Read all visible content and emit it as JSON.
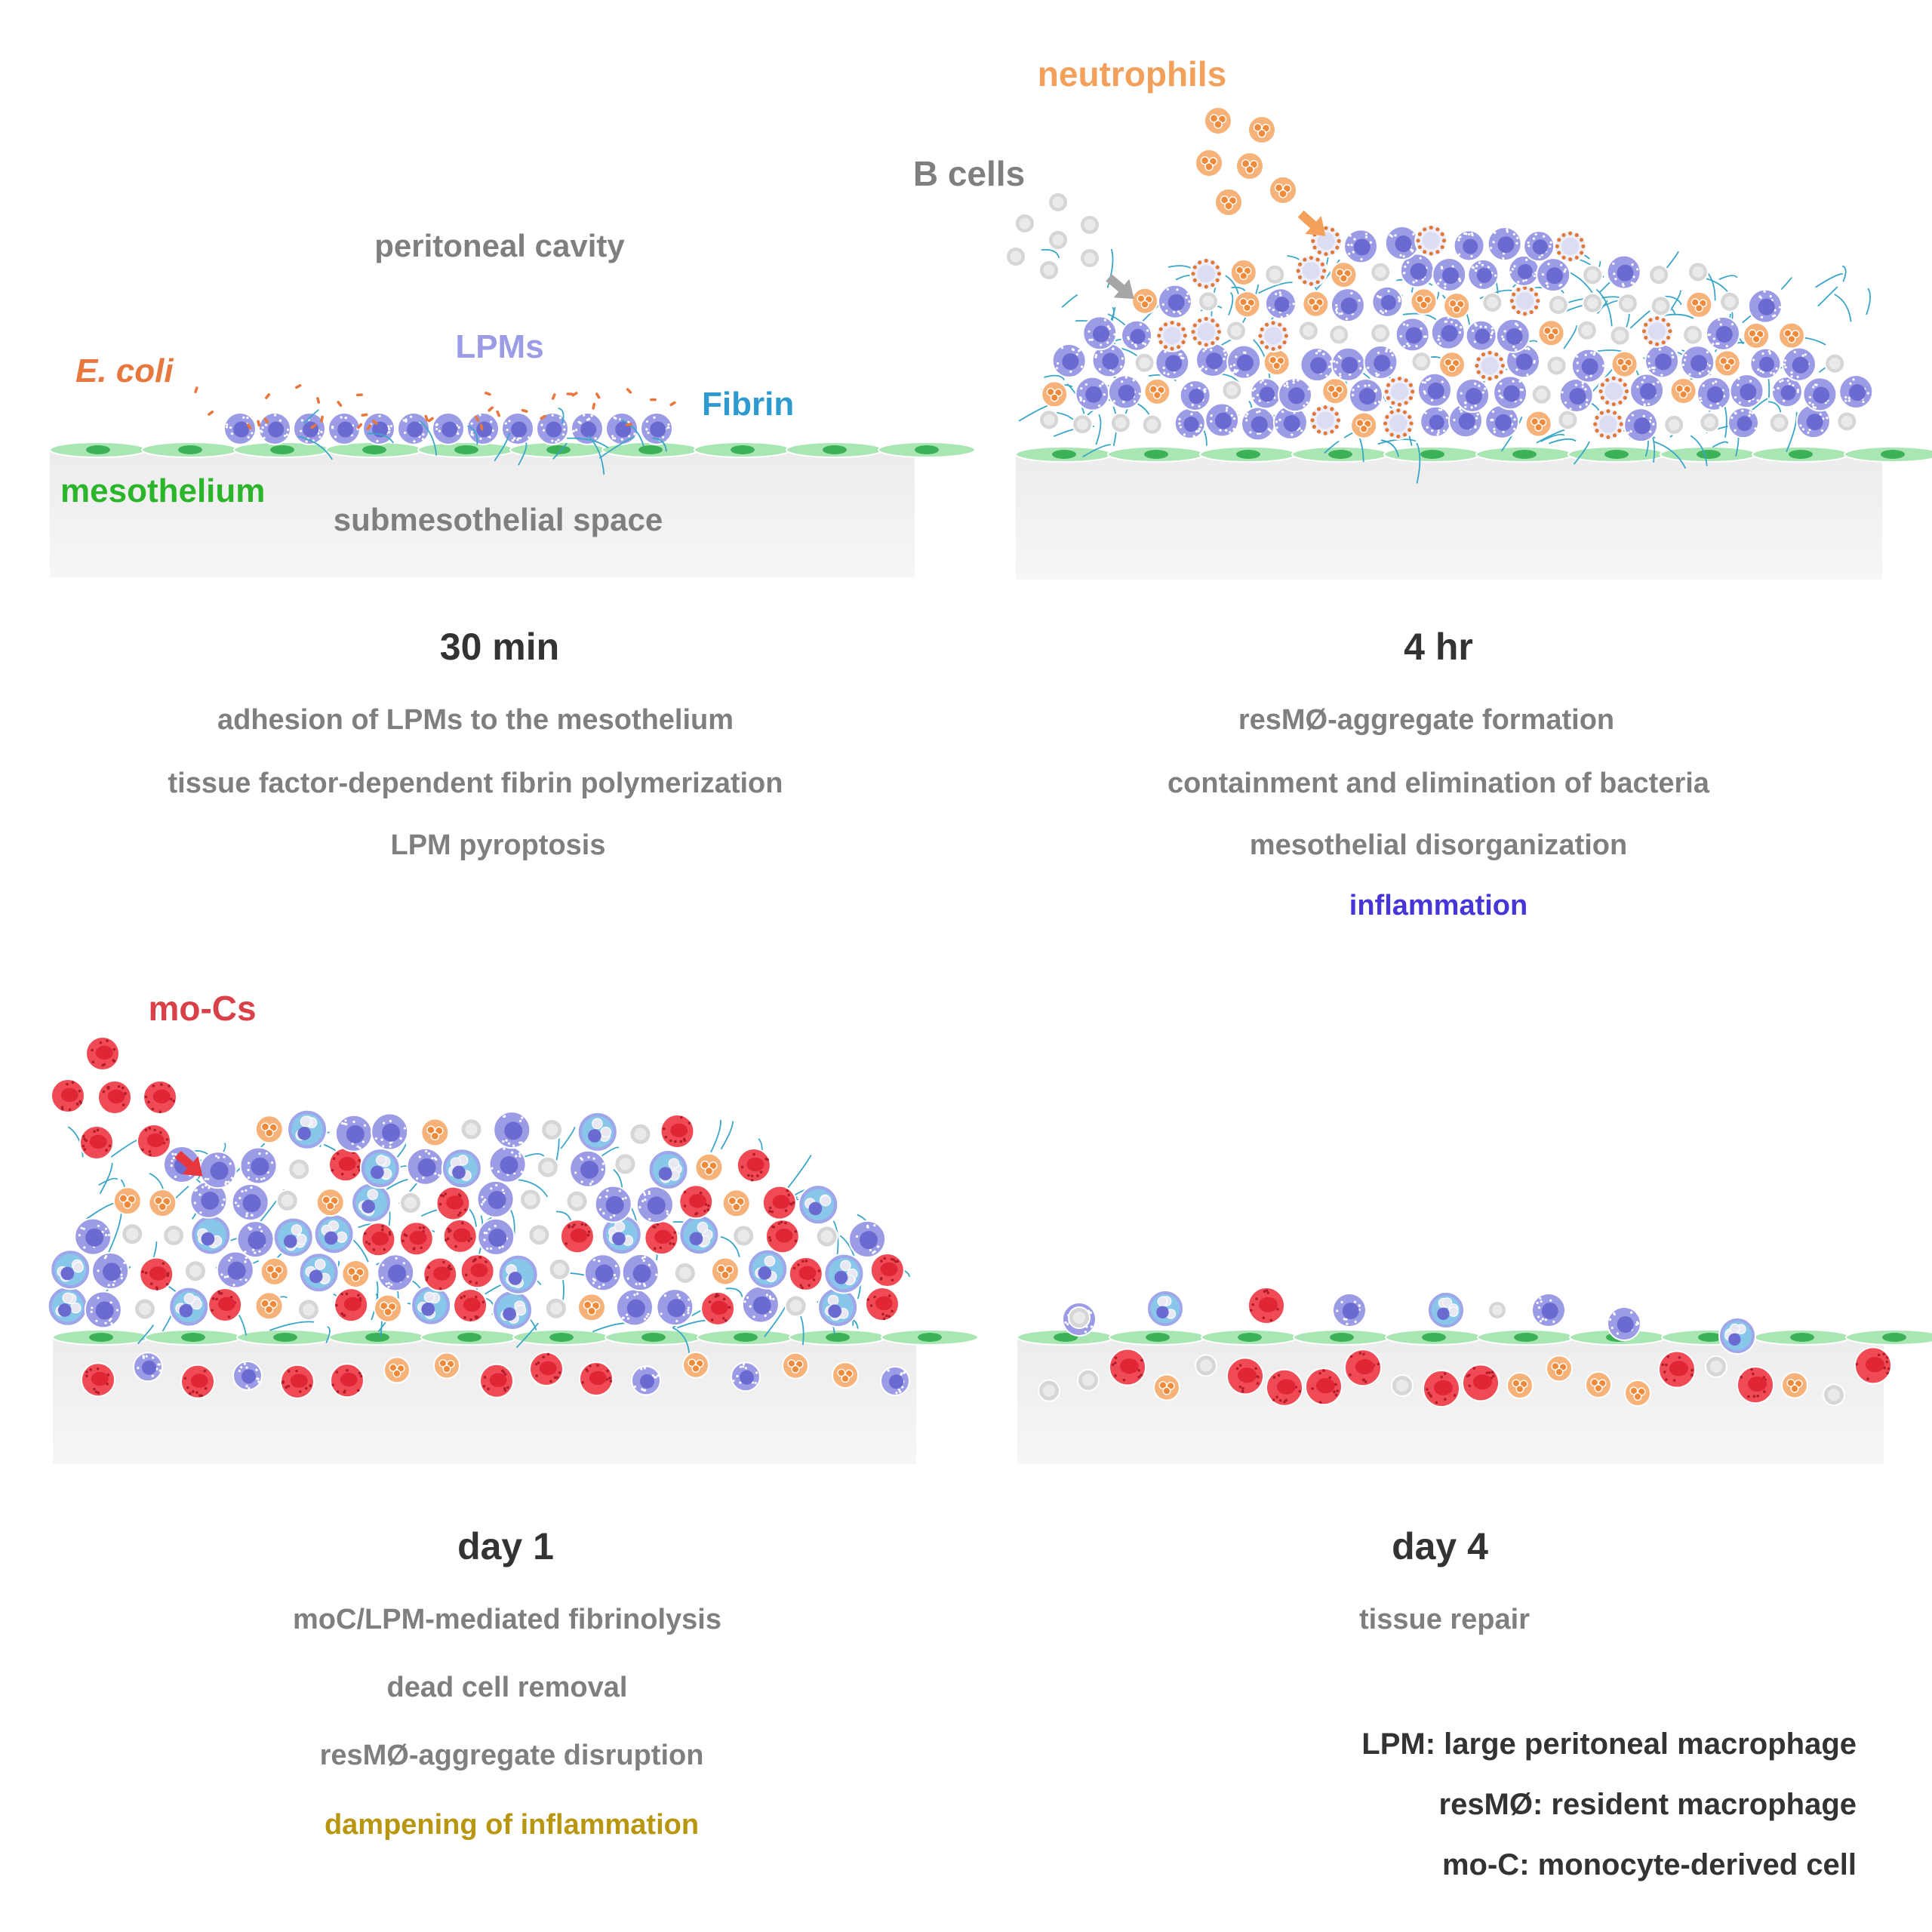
{
  "panels": [
    {
      "time": "30 min",
      "labels": {
        "cavity": "peritoneal cavity",
        "bacteria": "E. coli",
        "macrophages": "LPMs",
        "fibrin": "Fibrin",
        "mesothelium": "mesothelium",
        "submesothelial": "submesothelial space"
      },
      "events": [
        {
          "text": "adhesion of LPMs to the mesothelium",
          "color": "#7f7f7f"
        },
        {
          "text": "tissue factor-dependent fibrin polymerization",
          "color": "#7f7f7f"
        },
        {
          "text": "LPM pyroptosis",
          "color": "#7f7f7f"
        }
      ]
    },
    {
      "time": "4 hr",
      "labels": {
        "neutrophils": "neutrophils",
        "bcells": "B cells"
      },
      "events": [
        {
          "text": "resMØ-aggregate formation",
          "color": "#7f7f7f"
        },
        {
          "text": "containment and elimination of bacteria",
          "color": "#7f7f7f"
        },
        {
          "text": "mesothelial disorganization",
          "color": "#7f7f7f"
        },
        {
          "text": "inflammation",
          "color": "#4636d8"
        }
      ]
    },
    {
      "time": "day 1",
      "labels": {
        "mocs": "mo-Cs"
      },
      "events": [
        {
          "text": "moC/LPM-mediated fibrinolysis",
          "color": "#7f7f7f"
        },
        {
          "text": "dead cell removal",
          "color": "#7f7f7f"
        },
        {
          "text": "resMØ-aggregate disruption",
          "color": "#7f7f7f"
        },
        {
          "text": "dampening of inflammation",
          "color": "#b8960f"
        }
      ]
    },
    {
      "time": "day 4",
      "events": [
        {
          "text": "tissue repair",
          "color": "#7f7f7f"
        }
      ]
    }
  ],
  "legend": [
    "LPM: large peritoneal macrophage",
    "resMØ: resident macrophage",
    "mo-C: monocyte-derived cell"
  ],
  "colors": {
    "lpm": "#9b9be6",
    "lpm_nucleus": "#6a6ad0",
    "neutrophil": "#f7b27a",
    "neutrophil_granule": "#ef8a3a",
    "bcell": "#cfcfcf",
    "moc": "#f04a55",
    "fibrin": "#3aa6c8",
    "mesothelium": "#a9e6b4",
    "mesothelium_nucleus": "#3db158",
    "ecoli": "#e8773e",
    "tissue": "#f2f2f2"
  }
}
